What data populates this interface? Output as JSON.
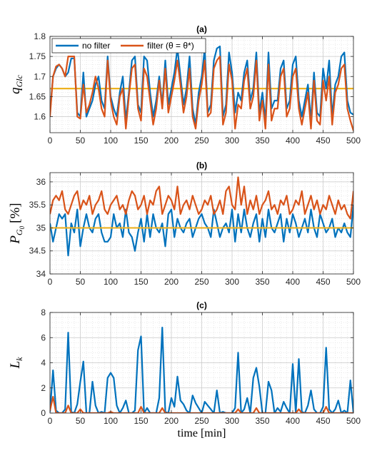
{
  "chart_data": [
    {
      "type": "line",
      "title": "(a)",
      "ylabel": "q",
      "ylabel_sub": "Glc",
      "xlabel": "",
      "xlim": [
        0,
        500
      ],
      "ylim": [
        1.56,
        1.8
      ],
      "xticks": [
        "0",
        "50",
        "100",
        "150",
        "200",
        "250",
        "300",
        "350",
        "400",
        "450",
        "500"
      ],
      "yticks": [
        "1.6",
        "1.65",
        "1.7",
        "1.75",
        "1.8"
      ],
      "ytick_values": [
        1.6,
        1.65,
        1.7,
        1.75,
        1.8
      ],
      "grid": true,
      "legend": {
        "position": "top-left",
        "entries": [
          "no filter",
          "filter (θ = θ*)"
        ]
      },
      "x": [
        0,
        5,
        10,
        15,
        20,
        25,
        30,
        35,
        40,
        45,
        50,
        55,
        60,
        65,
        70,
        75,
        80,
        85,
        90,
        95,
        100,
        105,
        110,
        115,
        120,
        125,
        130,
        135,
        140,
        145,
        150,
        155,
        160,
        165,
        170,
        175,
        180,
        185,
        190,
        195,
        200,
        205,
        210,
        215,
        220,
        225,
        230,
        235,
        240,
        245,
        250,
        255,
        260,
        265,
        270,
        275,
        280,
        285,
        290,
        295,
        300,
        305,
        310,
        315,
        320,
        325,
        330,
        335,
        340,
        345,
        350,
        355,
        360,
        365,
        370,
        375,
        380,
        385,
        390,
        395,
        400,
        405,
        410,
        415,
        420,
        425,
        430,
        435,
        440,
        445,
        450,
        455,
        460,
        465,
        470,
        475,
        480,
        485,
        490,
        495,
        500
      ],
      "reference_line": {
        "value": 1.67,
        "color": "#EDB120"
      },
      "series": [
        {
          "name": "no filter",
          "color": "#0072BD",
          "values": [
            1.61,
            1.7,
            1.72,
            1.73,
            1.72,
            1.7,
            1.71,
            1.745,
            1.745,
            1.61,
            1.6,
            1.71,
            1.6,
            1.62,
            1.64,
            1.68,
            1.7,
            1.64,
            1.62,
            1.75,
            1.65,
            1.62,
            1.6,
            1.66,
            1.7,
            1.59,
            1.66,
            1.74,
            1.75,
            1.63,
            1.61,
            1.75,
            1.74,
            1.66,
            1.6,
            1.64,
            1.7,
            1.63,
            1.74,
            1.63,
            1.67,
            1.71,
            1.77,
            1.7,
            1.63,
            1.67,
            1.75,
            1.62,
            1.58,
            1.66,
            1.7,
            1.77,
            1.61,
            1.63,
            1.74,
            1.77,
            1.775,
            1.6,
            1.63,
            1.76,
            1.71,
            1.61,
            1.66,
            1.64,
            1.71,
            1.74,
            1.64,
            1.67,
            1.76,
            1.61,
            1.66,
            1.59,
            1.76,
            1.62,
            1.64,
            1.64,
            1.72,
            1.74,
            1.62,
            1.64,
            1.73,
            1.75,
            1.64,
            1.6,
            1.64,
            1.68,
            1.59,
            1.71,
            1.61,
            1.6,
            1.72,
            1.67,
            1.74,
            1.6,
            1.68,
            1.7,
            1.75,
            1.76,
            1.64,
            1.61,
            1.605
          ]
        },
        {
          "name": "filter (θ = θ*)",
          "color": "#D95319",
          "values": [
            1.6,
            1.7,
            1.725,
            1.73,
            1.72,
            1.7,
            1.75,
            1.75,
            1.75,
            1.6,
            1.595,
            1.68,
            1.61,
            1.63,
            1.66,
            1.7,
            1.67,
            1.62,
            1.6,
            1.74,
            1.64,
            1.6,
            1.58,
            1.65,
            1.67,
            1.57,
            1.65,
            1.72,
            1.73,
            1.62,
            1.59,
            1.72,
            1.7,
            1.64,
            1.58,
            1.62,
            1.69,
            1.62,
            1.72,
            1.61,
            1.65,
            1.69,
            1.74,
            1.68,
            1.61,
            1.65,
            1.72,
            1.6,
            1.57,
            1.64,
            1.68,
            1.74,
            1.6,
            1.61,
            1.72,
            1.74,
            1.75,
            1.58,
            1.61,
            1.73,
            1.69,
            1.57,
            1.63,
            1.62,
            1.69,
            1.72,
            1.62,
            1.65,
            1.74,
            1.59,
            1.64,
            1.57,
            1.73,
            1.59,
            1.62,
            1.62,
            1.7,
            1.72,
            1.6,
            1.62,
            1.7,
            1.72,
            1.62,
            1.58,
            1.62,
            1.66,
            1.57,
            1.69,
            1.59,
            1.58,
            1.69,
            1.64,
            1.7,
            1.58,
            1.66,
            1.68,
            1.72,
            1.73,
            1.62,
            1.59,
            1.565
          ]
        }
      ]
    },
    {
      "type": "line",
      "title": "(b)",
      "ylabel": "P",
      "ylabel_sub": "G",
      "ylabel_subsub": "0",
      "ylabel_unit": "[%]",
      "xlabel": "",
      "xlim": [
        0,
        500
      ],
      "ylim": [
        34,
        36.2
      ],
      "xticks": [
        "0",
        "50",
        "100",
        "150",
        "200",
        "250",
        "300",
        "350",
        "400",
        "450",
        "500"
      ],
      "yticks": [
        "34",
        "34.5",
        "35",
        "35.5",
        "36"
      ],
      "ytick_values": [
        34,
        34.5,
        35,
        35.5,
        36
      ],
      "grid": true,
      "x": [
        0,
        5,
        10,
        15,
        20,
        25,
        30,
        35,
        40,
        45,
        50,
        55,
        60,
        65,
        70,
        75,
        80,
        85,
        90,
        95,
        100,
        105,
        110,
        115,
        120,
        125,
        130,
        135,
        140,
        145,
        150,
        155,
        160,
        165,
        170,
        175,
        180,
        185,
        190,
        195,
        200,
        205,
        210,
        215,
        220,
        225,
        230,
        235,
        240,
        245,
        250,
        255,
        260,
        265,
        270,
        275,
        280,
        285,
        290,
        295,
        300,
        305,
        310,
        315,
        320,
        325,
        330,
        335,
        340,
        345,
        350,
        355,
        360,
        365,
        370,
        375,
        380,
        385,
        390,
        395,
        400,
        405,
        410,
        415,
        420,
        425,
        430,
        435,
        440,
        445,
        450,
        455,
        460,
        465,
        470,
        475,
        480,
        485,
        490,
        495,
        500
      ],
      "reference_line": {
        "value": 35.0,
        "color": "#EDB120"
      },
      "series": [
        {
          "name": "",
          "color": "#0072BD",
          "values": [
            35.1,
            34.7,
            35.0,
            35.3,
            35.2,
            35.3,
            34.4,
            35.1,
            34.9,
            35.4,
            34.6,
            35.0,
            35.3,
            35.0,
            34.9,
            35.2,
            35.3,
            34.9,
            34.7,
            34.7,
            34.8,
            35.3,
            35.0,
            35.1,
            34.8,
            35.4,
            34.9,
            34.8,
            34.5,
            34.9,
            35.2,
            34.7,
            35.3,
            34.8,
            35.3,
            35.0,
            34.9,
            35.1,
            34.6,
            35.3,
            35.4,
            34.8,
            35.2,
            35.0,
            34.9,
            35.1,
            35.2,
            34.8,
            35.0,
            35.2,
            35.3,
            35.1,
            35.0,
            34.8,
            35.4,
            35.1,
            34.8,
            35.0,
            35.1,
            34.9,
            35.4,
            34.7,
            35.3,
            34.9,
            35.4,
            35.0,
            34.8,
            35.1,
            35.3,
            34.7,
            35.2,
            34.8,
            35.4,
            35.0,
            34.9,
            35.1,
            35.3,
            34.7,
            35.2,
            34.9,
            35.3,
            35.1,
            34.8,
            35.0,
            35.2,
            34.9,
            35.4,
            35.0,
            34.8,
            35.3,
            35.1,
            34.9,
            35.0,
            35.2,
            34.8,
            35.0,
            34.9,
            35.1,
            34.9,
            34.8,
            35.5
          ]
        },
        {
          "name": "",
          "color": "#D95319",
          "values": [
            35.3,
            35.6,
            35.7,
            35.6,
            35.8,
            35.4,
            35.3,
            35.5,
            35.7,
            35.8,
            35.4,
            35.6,
            35.5,
            35.7,
            35.3,
            35.5,
            35.6,
            35.8,
            35.4,
            35.3,
            35.5,
            35.6,
            35.7,
            35.4,
            35.5,
            35.3,
            35.6,
            35.8,
            35.7,
            35.4,
            35.5,
            35.7,
            35.3,
            35.6,
            35.5,
            35.8,
            35.9,
            35.3,
            35.5,
            35.7,
            35.6,
            35.4,
            35.9,
            35.3,
            35.5,
            35.6,
            35.4,
            35.7,
            35.5,
            35.3,
            35.4,
            35.6,
            35.5,
            35.7,
            35.3,
            35.4,
            35.6,
            35.3,
            35.8,
            35.9,
            35.5,
            35.4,
            36.1,
            35.5,
            35.9,
            35.3,
            35.6,
            35.4,
            35.7,
            35.3,
            35.5,
            35.6,
            35.8,
            35.4,
            35.5,
            35.3,
            35.6,
            35.5,
            35.7,
            35.3,
            35.4,
            35.6,
            35.5,
            35.8,
            35.3,
            35.5,
            35.7,
            35.4,
            35.6,
            35.3,
            35.5,
            35.4,
            35.7,
            35.5,
            35.3,
            35.6,
            35.4,
            35.5,
            35.3,
            35.2,
            35.8
          ]
        }
      ]
    },
    {
      "type": "line",
      "title": "(c)",
      "ylabel": "L",
      "ylabel_sub": "k",
      "xlabel": "time [min]",
      "xlim": [
        0,
        500
      ],
      "ylim": [
        0,
        8
      ],
      "xticks": [
        "0",
        "50",
        "100",
        "150",
        "200",
        "250",
        "300",
        "350",
        "400",
        "450",
        "500"
      ],
      "yticks": [
        "0",
        "2",
        "4",
        "6",
        "8"
      ],
      "ytick_values": [
        0,
        2,
        4,
        6,
        8
      ],
      "grid": true,
      "x": [
        0,
        5,
        10,
        15,
        20,
        25,
        30,
        35,
        40,
        45,
        50,
        55,
        60,
        65,
        70,
        75,
        80,
        85,
        90,
        95,
        100,
        105,
        110,
        115,
        120,
        125,
        130,
        135,
        140,
        145,
        150,
        155,
        160,
        165,
        170,
        175,
        180,
        185,
        190,
        195,
        200,
        205,
        210,
        215,
        220,
        225,
        230,
        235,
        240,
        245,
        250,
        255,
        260,
        265,
        270,
        275,
        280,
        285,
        290,
        295,
        300,
        305,
        310,
        315,
        320,
        325,
        330,
        335,
        340,
        345,
        350,
        355,
        360,
        365,
        370,
        375,
        380,
        385,
        390,
        395,
        400,
        405,
        410,
        415,
        420,
        425,
        430,
        435,
        440,
        445,
        450,
        455,
        460,
        465,
        470,
        475,
        480,
        485,
        490,
        495,
        500
      ],
      "series": [
        {
          "name": "",
          "color": "#0072BD",
          "values": [
            0.1,
            3.4,
            0.2,
            0.0,
            0.0,
            0.3,
            6.4,
            0.1,
            0.0,
            0.7,
            2.5,
            4.1,
            0.0,
            0.0,
            2.5,
            0.6,
            0.0,
            0.1,
            0.0,
            2.8,
            3.2,
            2.8,
            0.6,
            0.0,
            0.4,
            1.0,
            0.0,
            0.0,
            0.2,
            5.0,
            6.1,
            0.0,
            0.4,
            0.0,
            0.0,
            0.0,
            1.2,
            6.8,
            0.1,
            0.0,
            1.2,
            0.5,
            2.9,
            1.0,
            0.7,
            0.2,
            0.0,
            1.4,
            0.8,
            0.4,
            0.0,
            0.9,
            0.6,
            0.3,
            0.0,
            1.8,
            0.0,
            0.1,
            0.0,
            0.0,
            0.0,
            0.4,
            4.8,
            0.0,
            0.3,
            1.2,
            0.0,
            2.8,
            3.6,
            2.1,
            0.0,
            0.0,
            2.5,
            1.8,
            0.0,
            0.4,
            0.1,
            0.9,
            0.4,
            0.0,
            3.9,
            0.0,
            4.3,
            0.1,
            0.0,
            0.6,
            1.8,
            0.3,
            0.0,
            0.0,
            0.5,
            5.2,
            0.3,
            0.0,
            0.3,
            1.0,
            0.0,
            0.2,
            0.0,
            2.6,
            0.0
          ]
        },
        {
          "name": "",
          "color": "#D95319",
          "values": [
            0.2,
            1.3,
            0.0,
            0.0,
            0.0,
            0.0,
            0.6,
            0.0,
            0.0,
            0.0,
            0.3,
            0.0,
            0.0,
            0.0,
            0.0,
            0.0,
            0.0,
            0.0,
            0.0,
            0.0,
            0.1,
            0.0,
            0.0,
            0.0,
            0.0,
            0.0,
            0.0,
            0.0,
            0.0,
            0.0,
            0.5,
            0.0,
            0.0,
            0.0,
            0.0,
            0.0,
            0.0,
            0.4,
            0.0,
            0.0,
            0.0,
            0.0,
            0.0,
            0.0,
            0.0,
            0.0,
            0.0,
            0.0,
            0.0,
            0.0,
            0.0,
            0.0,
            0.0,
            0.0,
            0.0,
            0.0,
            0.0,
            0.0,
            0.0,
            0.0,
            0.0,
            0.0,
            0.3,
            0.0,
            0.0,
            0.0,
            0.0,
            0.0,
            0.4,
            0.0,
            0.0,
            0.0,
            0.0,
            0.0,
            0.0,
            0.0,
            0.0,
            0.0,
            0.0,
            0.0,
            0.0,
            0.0,
            0.3,
            0.0,
            0.0,
            0.0,
            0.0,
            0.0,
            0.0,
            0.0,
            0.0,
            0.5,
            0.0,
            0.0,
            0.0,
            0.0,
            0.0,
            0.0,
            0.0,
            0.0,
            0.0
          ]
        }
      ]
    }
  ]
}
